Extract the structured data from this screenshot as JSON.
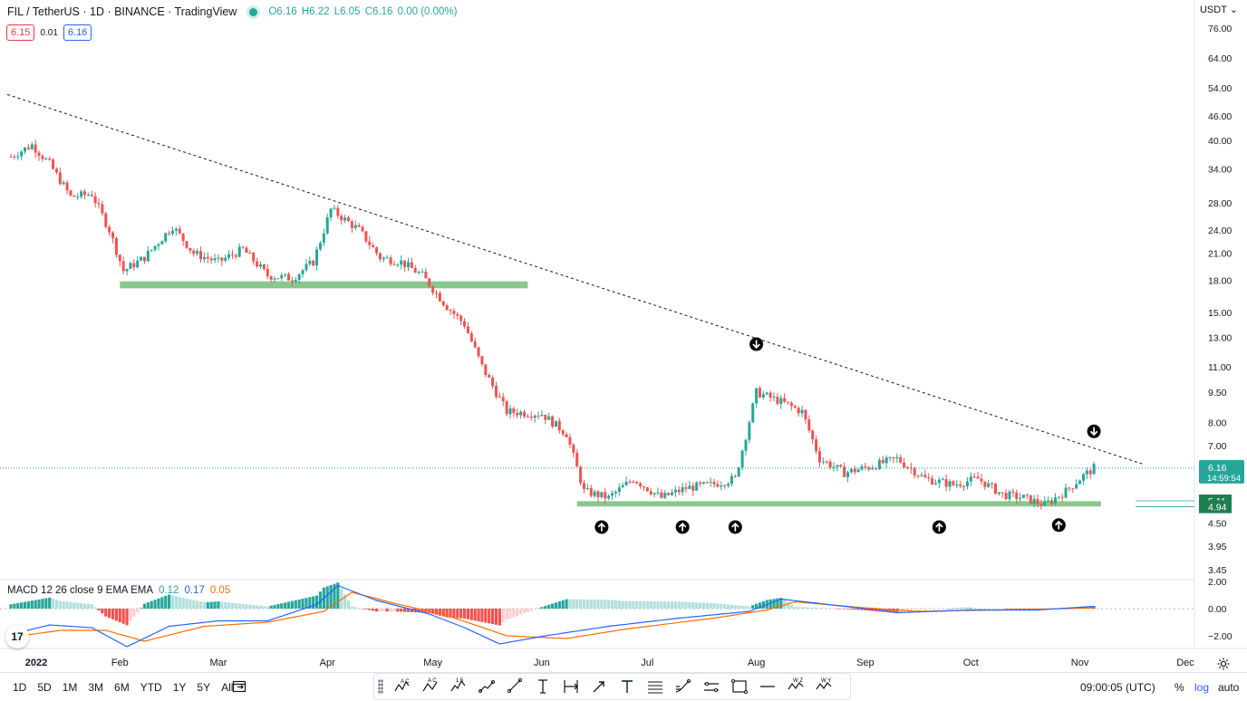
{
  "header": {
    "title": "FIL / TetherUS · 1D · BINANCE · TradingView",
    "ohlc": {
      "o": "O6.16",
      "h": "H6.22",
      "l": "L6.05",
      "c": "C6.16",
      "chg": "0.00 (0.00%)"
    },
    "bid": "6.15",
    "spread": "0.01",
    "ask": "6.16",
    "currency": "USDT"
  },
  "colors": {
    "up": "#26a69a",
    "down": "#ef5350",
    "zone": "#7bc27d",
    "macd_line": "#2962ff",
    "signal_line": "#ff6d00",
    "price_tag": "#26a69a",
    "accent": "#2962ff"
  },
  "chart_data": [
    {
      "type": "candlestick",
      "title": "FIL / TetherUS",
      "scale": "log",
      "y_ticks": [
        "76.00",
        "64.00",
        "54.00",
        "46.00",
        "40.00",
        "34.00",
        "28.00",
        "24.00",
        "21.00",
        "18.00",
        "15.00",
        "13.00",
        "11.00",
        "9.50",
        "8.00",
        "7.00",
        "6.16",
        "5.11",
        "4.94",
        "4.50",
        "3.95",
        "3.45"
      ],
      "x_ticks": [
        "2022",
        "Feb",
        "Mar",
        "Apr",
        "May",
        "Jun",
        "Jul",
        "Aug",
        "Sep",
        "Oct",
        "Nov",
        "Dec"
      ],
      "last_price": "6.16",
      "countdown": "14:59:54",
      "levels": [
        {
          "label": "5.11",
          "value": 5.11
        },
        {
          "label": "4.94",
          "value": 4.94
        }
      ],
      "close_path": [
        {
          "date": "2022-01-01",
          "close": 36.5
        },
        {
          "date": "2022-01-07",
          "close": 39.0
        },
        {
          "date": "2022-01-12",
          "close": 35.0
        },
        {
          "date": "2022-01-18",
          "close": 29.0
        },
        {
          "date": "2022-01-24",
          "close": 29.5
        },
        {
          "date": "2022-01-29",
          "close": 24.0
        },
        {
          "date": "2022-02-02",
          "close": 19.0
        },
        {
          "date": "2022-02-08",
          "close": 20.5
        },
        {
          "date": "2022-02-16",
          "close": 24.5
        },
        {
          "date": "2022-02-22",
          "close": 21.0
        },
        {
          "date": "2022-03-01",
          "close": 20.0
        },
        {
          "date": "2022-03-08",
          "close": 21.5
        },
        {
          "date": "2022-03-15",
          "close": 18.5
        },
        {
          "date": "2022-03-22",
          "close": 18.2
        },
        {
          "date": "2022-03-28",
          "close": 20.0
        },
        {
          "date": "2022-04-02",
          "close": 27.0
        },
        {
          "date": "2022-04-10",
          "close": 24.0
        },
        {
          "date": "2022-04-16",
          "close": 20.5
        },
        {
          "date": "2022-04-22",
          "close": 20.0
        },
        {
          "date": "2022-04-28",
          "close": 18.5
        },
        {
          "date": "2022-05-05",
          "close": 15.5
        },
        {
          "date": "2022-05-10",
          "close": 14.0
        },
        {
          "date": "2022-05-15",
          "close": 11.0
        },
        {
          "date": "2022-05-22",
          "close": 8.5
        },
        {
          "date": "2022-06-01",
          "close": 8.4
        },
        {
          "date": "2022-06-08",
          "close": 7.5
        },
        {
          "date": "2022-06-13",
          "close": 5.4
        },
        {
          "date": "2022-06-20",
          "close": 5.2
        },
        {
          "date": "2022-06-27",
          "close": 5.8
        },
        {
          "date": "2022-07-05",
          "close": 5.2
        },
        {
          "date": "2022-07-12",
          "close": 5.5
        },
        {
          "date": "2022-07-19",
          "close": 5.6
        },
        {
          "date": "2022-07-26",
          "close": 5.8
        },
        {
          "date": "2022-08-01",
          "close": 9.5
        },
        {
          "date": "2022-08-08",
          "close": 9.0
        },
        {
          "date": "2022-08-14",
          "close": 8.5
        },
        {
          "date": "2022-08-19",
          "close": 6.5
        },
        {
          "date": "2022-08-26",
          "close": 6.0
        },
        {
          "date": "2022-09-02",
          "close": 6.2
        },
        {
          "date": "2022-09-10",
          "close": 6.5
        },
        {
          "date": "2022-09-18",
          "close": 5.8
        },
        {
          "date": "2022-09-26",
          "close": 5.6
        },
        {
          "date": "2022-10-03",
          "close": 5.8
        },
        {
          "date": "2022-10-10",
          "close": 5.3
        },
        {
          "date": "2022-10-16",
          "close": 5.2
        },
        {
          "date": "2022-10-22",
          "close": 5.0
        },
        {
          "date": "2022-10-28",
          "close": 5.4
        },
        {
          "date": "2022-11-02",
          "close": 5.9
        },
        {
          "date": "2022-11-05",
          "close": 6.16
        }
      ],
      "trendline": {
        "style": "dashed",
        "start": {
          "date": "2021-12-31",
          "value": 52.0
        },
        "end": {
          "date": "2022-11-19",
          "value": 6.3
        }
      },
      "zones": [
        {
          "from": "2022-02-01",
          "to": "2022-05-28",
          "low": 17.2,
          "high": 17.9
        },
        {
          "from": "2022-06-11",
          "to": "2022-11-07",
          "low": 4.95,
          "high": 5.1
        }
      ],
      "markers": [
        {
          "type": "down",
          "date": "2022-08-01",
          "value": 12.5
        },
        {
          "type": "down",
          "date": "2022-11-05",
          "value": 7.6
        },
        {
          "type": "up",
          "date": "2022-06-18",
          "value": 4.4
        },
        {
          "type": "up",
          "date": "2022-07-11",
          "value": 4.4
        },
        {
          "type": "up",
          "date": "2022-07-26",
          "value": 4.4
        },
        {
          "type": "up",
          "date": "2022-09-22",
          "value": 4.4
        },
        {
          "type": "up",
          "date": "2022-10-26",
          "value": 4.45
        }
      ]
    },
    {
      "type": "macd",
      "title": "MACD 12 26 close 9 EMA EMA",
      "values": {
        "histogram": "0.12",
        "macd": "0.17",
        "signal": "0.05"
      },
      "y_ticks": [
        "2.00",
        "0.00",
        "−2.00"
      ],
      "macd_path": [
        {
          "date": "2022-01-01",
          "value": -1.9
        },
        {
          "date": "2022-01-12",
          "value": -1.2
        },
        {
          "date": "2022-01-24",
          "value": -1.4
        },
        {
          "date": "2022-02-03",
          "value": -2.8
        },
        {
          "date": "2022-02-15",
          "value": -1.3
        },
        {
          "date": "2022-03-01",
          "value": -0.9
        },
        {
          "date": "2022-03-15",
          "value": -0.9
        },
        {
          "date": "2022-03-29",
          "value": 0.3
        },
        {
          "date": "2022-04-04",
          "value": 1.7
        },
        {
          "date": "2022-04-15",
          "value": 0.6
        },
        {
          "date": "2022-04-30",
          "value": -0.4
        },
        {
          "date": "2022-05-10",
          "value": -1.4
        },
        {
          "date": "2022-05-20",
          "value": -2.6
        },
        {
          "date": "2022-06-02",
          "value": -2.0
        },
        {
          "date": "2022-06-20",
          "value": -1.3
        },
        {
          "date": "2022-07-10",
          "value": -0.7
        },
        {
          "date": "2022-07-30",
          "value": -0.2
        },
        {
          "date": "2022-08-08",
          "value": 0.7
        },
        {
          "date": "2022-08-25",
          "value": 0.2
        },
        {
          "date": "2022-09-10",
          "value": -0.3
        },
        {
          "date": "2022-10-01",
          "value": -0.1
        },
        {
          "date": "2022-10-20",
          "value": -0.1
        },
        {
          "date": "2022-11-05",
          "value": 0.17
        }
      ],
      "signal_path": [
        {
          "date": "2022-01-01",
          "value": -2.1
        },
        {
          "date": "2022-01-15",
          "value": -1.6
        },
        {
          "date": "2022-01-28",
          "value": -1.6
        },
        {
          "date": "2022-02-08",
          "value": -2.4
        },
        {
          "date": "2022-02-25",
          "value": -1.3
        },
        {
          "date": "2022-03-15",
          "value": -1.0
        },
        {
          "date": "2022-03-31",
          "value": -0.2
        },
        {
          "date": "2022-04-08",
          "value": 1.2
        },
        {
          "date": "2022-04-20",
          "value": 0.4
        },
        {
          "date": "2022-05-05",
          "value": -0.5
        },
        {
          "date": "2022-05-22",
          "value": -2.0
        },
        {
          "date": "2022-06-08",
          "value": -2.2
        },
        {
          "date": "2022-06-25",
          "value": -1.5
        },
        {
          "date": "2022-07-20",
          "value": -0.7
        },
        {
          "date": "2022-08-04",
          "value": -0.1
        },
        {
          "date": "2022-08-12",
          "value": 0.5
        },
        {
          "date": "2022-08-30",
          "value": 0.1
        },
        {
          "date": "2022-09-15",
          "value": -0.2
        },
        {
          "date": "2022-10-10",
          "value": -0.1
        },
        {
          "date": "2022-11-05",
          "value": 0.05
        }
      ]
    }
  ],
  "macd_legend": {
    "label": "MACD 12 26 close 9 EMA EMA",
    "hist": "0.12",
    "macd": "0.17",
    "signal": "0.05"
  },
  "bottom": {
    "ranges": [
      "1D",
      "5D",
      "1M",
      "3M",
      "6M",
      "YTD",
      "1Y",
      "5Y",
      "All"
    ],
    "time": "09:00:05 (UTC)",
    "percent": "%",
    "log": "log",
    "auto": "auto"
  },
  "drawing_tools": [
    "xabcd-pattern-icon",
    "abcd-pattern-icon",
    "elliott-wave-icon",
    "path-icon",
    "trend-line-icon",
    "vertical-text-icon",
    "date-range-icon",
    "arrow-icon",
    "text-icon",
    "horizontal-lines-icon",
    "fib-icon",
    "parallel-channel-icon",
    "rectangle-icon",
    "horizontal-line-icon",
    "wz-pattern-icon",
    "wy-pattern-icon"
  ]
}
